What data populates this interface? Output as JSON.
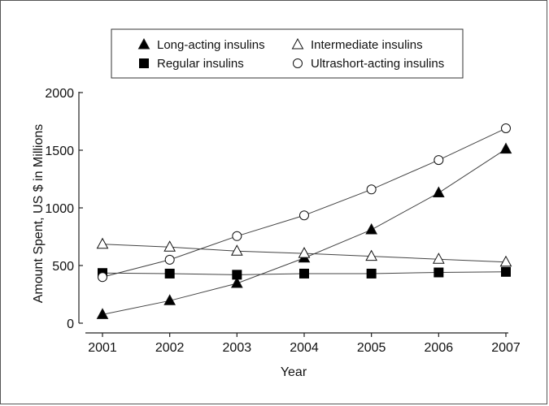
{
  "chart_data": {
    "type": "line",
    "title": "",
    "xlabel": "Year",
    "ylabel": "Amount Spent, US $ in Millions",
    "x": [
      "2001",
      "2002",
      "2003",
      "2004",
      "2005",
      "2006",
      "2007"
    ],
    "ylim": [
      0,
      2000
    ],
    "yticks": [
      "0",
      "500",
      "1000",
      "1500",
      "2000"
    ],
    "grid": false,
    "legend_position": "top",
    "series": [
      {
        "name": "Long-acting insulins",
        "marker": "triangle-filled",
        "values": [
          75,
          195,
          345,
          565,
          810,
          1130,
          1510
        ]
      },
      {
        "name": "Intermediate insulins",
        "marker": "triangle-open",
        "values": [
          685,
          660,
          625,
          605,
          580,
          555,
          530
        ]
      },
      {
        "name": "Regular insulins",
        "marker": "square-filled",
        "values": [
          435,
          430,
          420,
          430,
          430,
          440,
          445
        ]
      },
      {
        "name": "Ultrashort-acting insulins",
        "marker": "circle-open",
        "values": [
          400,
          550,
          755,
          935,
          1160,
          1415,
          1690
        ]
      }
    ]
  }
}
